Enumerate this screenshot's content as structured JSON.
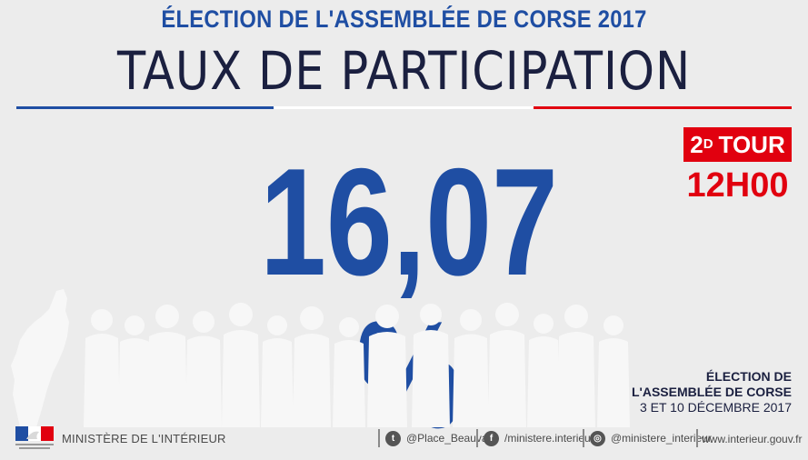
{
  "header": {
    "subtitle": "ÉLECTION DE L'ASSEMBLÉE DE CORSE 2017",
    "title": "TAUX DE PARTICIPATION"
  },
  "main": {
    "turnout_value": "16,07 %"
  },
  "badge": {
    "tour_number": "2",
    "tour_superscript": "D",
    "tour_label": "TOUR",
    "time": "12H00"
  },
  "election": {
    "line1": "ÉLECTION DE",
    "line2": "L'ASSEMBLÉE DE CORSE",
    "dates": "3 ET 10 DÉCEMBRE 2017"
  },
  "footer": {
    "ministry": "MINISTÈRE DE L'INTÉRIEUR",
    "twitter": "@Place_Beauvau",
    "facebook": "/ministere.interieur",
    "instagram": "@ministere_interieur",
    "website": "www.interieur.gouv.fr"
  },
  "colors": {
    "blue": "#1f4ea3",
    "red": "#e1000f",
    "navy": "#1b2040",
    "background": "#ececec"
  },
  "icons": [
    "twitter-icon",
    "facebook-icon",
    "instagram-icon",
    "marianne-logo",
    "corsica-map",
    "crowd-silhouettes"
  ]
}
